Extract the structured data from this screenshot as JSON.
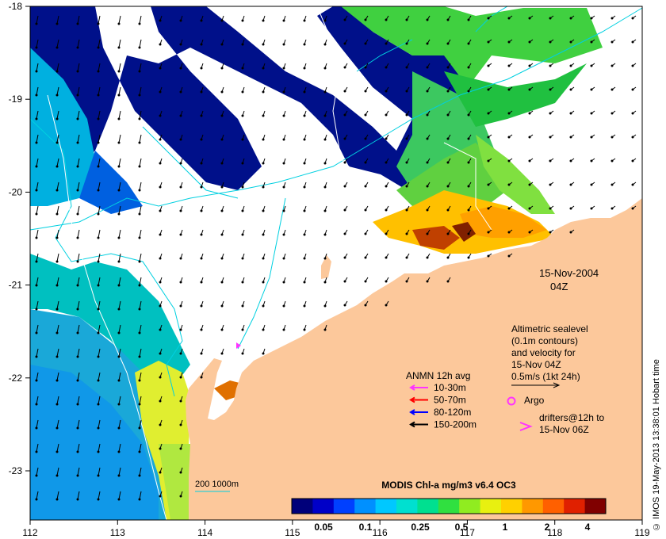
{
  "map": {
    "date": "15-Nov-2004",
    "time": "04Z",
    "x_ticks": [
      "112",
      "113",
      "114",
      "115",
      "116",
      "117",
      "118",
      "119"
    ],
    "y_ticks": [
      "-18",
      "-19",
      "-20",
      "-21",
      "-22",
      "-23"
    ]
  },
  "altimetry": {
    "lines": [
      "Altimetric sealevel",
      "(0.1m contours)",
      "and velocity for",
      "15-Nov 04Z",
      "0.5m/s (1kt 24h)"
    ]
  },
  "anmn": {
    "title": "ANMN 12h avg",
    "items": [
      {
        "label": "10-30m",
        "color": "#ff33ff"
      },
      {
        "label": "50-70m",
        "color": "#ff0000"
      },
      {
        "label": "80-120m",
        "color": "#0000ff"
      },
      {
        "label": "150-200m",
        "color": "#000000"
      }
    ]
  },
  "argo": {
    "label": "Argo",
    "color": "#ff33ff"
  },
  "drifters": {
    "line1": "drifters@12h to",
    "line2": "15-Nov 06Z",
    "color": "#ff33ff"
  },
  "depth_scale": {
    "label": "200  1000m"
  },
  "colorbar": {
    "title": "MODIS Chl-a mg/m3 v6.4 OC3",
    "ticks": [
      "0.05",
      "0.1",
      "0.25",
      "0.5",
      "1",
      "2",
      "4"
    ],
    "colors": [
      "#00007a",
      "#0000c8",
      "#0040ff",
      "#0090ff",
      "#00c8ff",
      "#00e0d0",
      "#00e090",
      "#30e040",
      "#90ec20",
      "#e8f010",
      "#ffd000",
      "#ff9800",
      "#ff6000",
      "#e02000",
      "#800000"
    ]
  },
  "credit": "© IMOS 19-May-2013 13:38:01 Hobart time",
  "colors": {
    "land": "#fcc89b",
    "contour": "#00d0e0"
  }
}
